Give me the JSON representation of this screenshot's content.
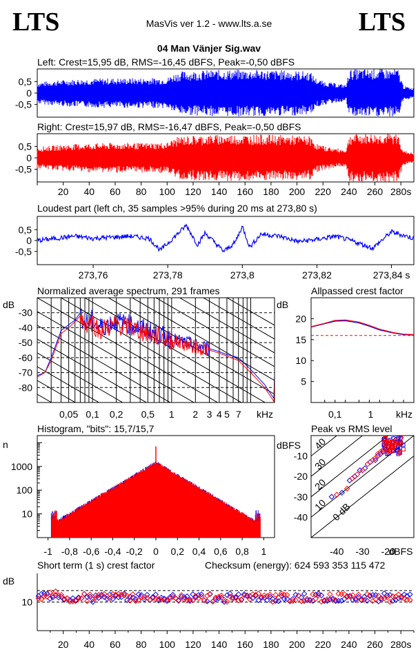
{
  "logo_left": "LTS",
  "logo_right": "LTS",
  "app_title": "MasVis ver 1.2 - www.lts.a.se",
  "file_name": "04 Man Vänjer Sig.wav",
  "colors": {
    "left": "#0000ff",
    "right": "#ff0000",
    "axis": "#000000"
  },
  "chart_data": [
    {
      "id": "left-waveform",
      "type": "area",
      "title": "Left: Crest=15,95 dB, RMS=-16,45 dBFS, Peak=-0,50 dBFS",
      "yticks": [
        "0,5",
        "0",
        "-0,5"
      ],
      "ylim": [
        -1,
        1
      ],
      "xlim": [
        0,
        290
      ],
      "envelope": [
        [
          0,
          0.45
        ],
        [
          10,
          0.5
        ],
        [
          20,
          0.55
        ],
        [
          40,
          0.6
        ],
        [
          60,
          0.62
        ],
        [
          80,
          0.62
        ],
        [
          100,
          0.64
        ],
        [
          105,
          0.8
        ],
        [
          110,
          0.9
        ],
        [
          130,
          0.95
        ],
        [
          150,
          0.97
        ],
        [
          170,
          0.97
        ],
        [
          190,
          0.95
        ],
        [
          210,
          0.9
        ],
        [
          215,
          0.6
        ],
        [
          220,
          0.5
        ],
        [
          230,
          0.4
        ],
        [
          238,
          0.35
        ],
        [
          240,
          0.97
        ],
        [
          250,
          1.0
        ],
        [
          270,
          1.0
        ],
        [
          278,
          0.99
        ],
        [
          282,
          0.3
        ],
        [
          290,
          0.2
        ]
      ]
    },
    {
      "id": "right-waveform",
      "type": "area",
      "title": "Right: Crest=15,97 dB, RMS=-16,47 dBFS, Peak=-0,50 dBFS",
      "yticks": [
        "0,5",
        "0",
        "-0,5"
      ],
      "ylim": [
        -1,
        1
      ],
      "xlim": [
        0,
        290
      ],
      "xticks": [
        "20",
        "40",
        "60",
        "80",
        "100",
        "120",
        "140",
        "160",
        "180",
        "200",
        "220",
        "240",
        "260",
        "280s"
      ],
      "envelope": [
        [
          0,
          0.45
        ],
        [
          10,
          0.5
        ],
        [
          20,
          0.55
        ],
        [
          40,
          0.6
        ],
        [
          60,
          0.62
        ],
        [
          80,
          0.62
        ],
        [
          100,
          0.64
        ],
        [
          105,
          0.8
        ],
        [
          110,
          0.9
        ],
        [
          130,
          0.95
        ],
        [
          150,
          0.97
        ],
        [
          170,
          0.97
        ],
        [
          190,
          0.95
        ],
        [
          210,
          0.9
        ],
        [
          215,
          0.6
        ],
        [
          220,
          0.5
        ],
        [
          230,
          0.4
        ],
        [
          238,
          0.35
        ],
        [
          240,
          0.97
        ],
        [
          250,
          1.0
        ],
        [
          270,
          1.0
        ],
        [
          278,
          0.99
        ],
        [
          282,
          0.3
        ],
        [
          290,
          0.2
        ]
      ]
    },
    {
      "id": "loudest-part",
      "type": "line",
      "title": "Loudest part (left  ch, 35 samples >95% during 20 ms at 273,80 s)",
      "yticks": [
        "0,5",
        "0",
        "-0,5"
      ],
      "xticks": [
        "273,76",
        "273,78",
        "273,8",
        "273,82",
        "273,84 s"
      ],
      "xlim": [
        273.745,
        273.846
      ],
      "ylim": [
        -1,
        1
      ],
      "series": [
        {
          "x": [
            273.745,
            273.75,
            273.755,
            273.76,
            273.765,
            273.77,
            273.775,
            273.778,
            273.782,
            273.785,
            273.788,
            273.79,
            273.795,
            273.798,
            273.8,
            273.802,
            273.805,
            273.81,
            273.815,
            273.82,
            273.825,
            273.83,
            273.835,
            273.84,
            273.846
          ],
          "values": [
            0.0,
            0.1,
            0.2,
            0.1,
            0.15,
            0.2,
            0.1,
            -0.45,
            0.2,
            0.7,
            -0.2,
            0.35,
            -0.5,
            -0.1,
            0.65,
            -0.3,
            0.3,
            0.2,
            -0.05,
            0.05,
            0.2,
            -0.05,
            -0.35,
            0.4,
            0.1
          ]
        }
      ]
    },
    {
      "id": "average-spectrum",
      "type": "line",
      "title": "Normalized average spectrum, 291 frames",
      "ylabel": "dB",
      "yticks": [
        "-30",
        "-40",
        "-50",
        "-60",
        "-70",
        "-80"
      ],
      "xticks": [
        "0,05",
        "0,1",
        "0,2",
        "0,5",
        "1",
        "2",
        "3",
        "4",
        "5",
        "7",
        "kHz"
      ],
      "ylim": [
        -90,
        -20
      ],
      "xlim": [
        0.02,
        20
      ],
      "x": [
        0.02,
        0.025,
        0.03,
        0.04,
        0.05,
        0.06,
        0.07,
        0.08,
        0.1,
        0.12,
        0.15,
        0.2,
        0.3,
        0.4,
        0.5,
        0.7,
        1,
        1.5,
        2,
        3,
        4,
        5,
        7,
        10,
        15,
        20
      ],
      "series": [
        {
          "values": [
            -72,
            -70,
            -60,
            -42,
            -38,
            -35,
            -30,
            -37,
            -35,
            -40,
            -38,
            -36,
            -38,
            -40,
            -42,
            -45,
            -48,
            -50,
            -52,
            -54,
            -56,
            -58,
            -60,
            -68,
            -78,
            -88
          ]
        },
        {
          "values": [
            -73,
            -70,
            -62,
            -44,
            -40,
            -36,
            -32,
            -38,
            -36,
            -42,
            -40,
            -38,
            -40,
            -42,
            -44,
            -46,
            -49,
            -51,
            -53,
            -55,
            -57,
            -59,
            -62,
            -70,
            -80,
            -90
          ]
        }
      ]
    },
    {
      "id": "allpassed-crest",
      "type": "line",
      "title": "Allpassed crest factor",
      "ylabel": "dB",
      "yticks": [
        "20",
        "15",
        "10",
        "5"
      ],
      "xticks": [
        "0,1",
        "1",
        "kHz"
      ],
      "ylim": [
        0,
        25
      ],
      "xlim": [
        0.02,
        20
      ],
      "x": [
        0.02,
        0.05,
        0.1,
        0.2,
        0.5,
        1,
        2,
        5,
        10,
        20
      ],
      "reference": 16,
      "series": [
        {
          "values": [
            18,
            18.8,
            19.4,
            19.5,
            19,
            18.2,
            17.3,
            16.6,
            16.2,
            16.1
          ]
        },
        {
          "values": [
            18.1,
            18.9,
            19.6,
            19.7,
            19.2,
            18.4,
            17.5,
            16.7,
            16.3,
            16.2
          ]
        }
      ]
    },
    {
      "id": "histogram",
      "type": "bar",
      "title": "Histogram, \"bits\": 15,7/15,7",
      "ylabel": "n",
      "yticks": [
        "1000",
        "100",
        "10"
      ],
      "xticks": [
        "-1",
        "-0,8",
        "-0,6",
        "-0,4",
        "-0,2",
        "0",
        "0,2",
        "0,4",
        "0,6",
        "0,8",
        "1"
      ],
      "xlim": [
        -1.1,
        1.1
      ],
      "ylog": true,
      "peak_count": 1500,
      "center_spike": 7000,
      "edge_count": 5
    },
    {
      "id": "peak-vs-rms",
      "type": "scatter",
      "title": "Peak vs RMS level",
      "ylabel": "dBFS",
      "xlabel": "dBFS",
      "yticks": [
        "-10",
        "-20",
        "-30",
        "-40"
      ],
      "xticks": [
        "-40",
        "-30",
        "-20",
        "dBFS"
      ],
      "diagonal_labels": [
        "40",
        "30",
        "20",
        "10",
        "0 dB"
      ],
      "xlim": [
        -50,
        -10
      ],
      "ylim": [
        -50,
        0
      ],
      "series": [
        {
          "x": [
            -42,
            -38,
            -35,
            -33,
            -31,
            -29,
            -27,
            -25,
            -24,
            -23,
            -22,
            -21,
            -20,
            -19,
            -18,
            -17,
            -16
          ],
          "values": [
            -30,
            -28,
            -22,
            -20,
            -17,
            -16,
            -13,
            -12,
            -10,
            -9,
            -8,
            -7,
            -6,
            -4,
            -3,
            -2,
            -1
          ]
        },
        {
          "x": [
            -40,
            -36,
            -34,
            -32,
            -30,
            -28,
            -26,
            -25,
            -24,
            -23,
            -22,
            -21,
            -20,
            -19,
            -18,
            -17,
            -15
          ],
          "values": [
            -29,
            -26,
            -21,
            -19,
            -17,
            -14,
            -12,
            -11,
            -9,
            -8,
            -7,
            -6,
            -5,
            -4,
            -3,
            -2,
            -1
          ]
        }
      ]
    },
    {
      "id": "short-term-crest",
      "type": "scatter",
      "title": "Short term (1 s) crest factor",
      "ylabel": "dB",
      "yticks": [
        "10"
      ],
      "xticks": [
        "20",
        "40",
        "60",
        "80",
        "100",
        "120",
        "140",
        "160",
        "180",
        "200",
        "220",
        "240",
        "260",
        "280s"
      ],
      "xlim": [
        0,
        290
      ],
      "ylim": [
        0,
        20
      ],
      "reference_lines": [
        14,
        10
      ]
    }
  ],
  "checksum": "Checksum (energy):  624 593 353 115 472"
}
